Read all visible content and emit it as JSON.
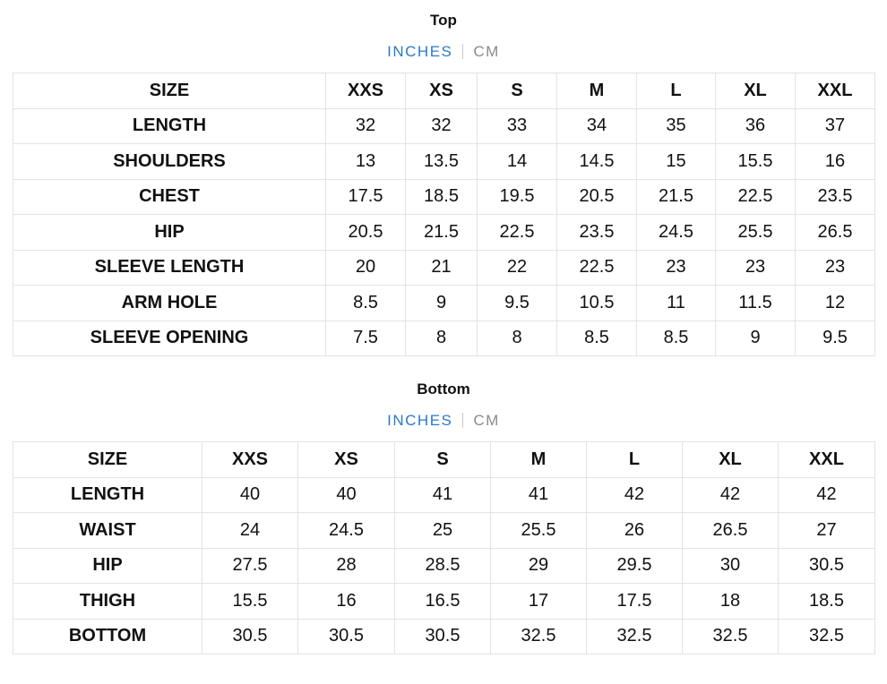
{
  "top": {
    "title": "Top",
    "units": {
      "active": "INCHES",
      "inactive": "CM"
    },
    "headers": [
      "SIZE",
      "XXS",
      "XS",
      "S",
      "M",
      "L",
      "XL",
      "XXL"
    ],
    "rows": [
      {
        "label": "LENGTH",
        "values": [
          "32",
          "32",
          "33",
          "34",
          "35",
          "36",
          "37"
        ]
      },
      {
        "label": "SHOULDERS",
        "values": [
          "13",
          "13.5",
          "14",
          "14.5",
          "15",
          "15.5",
          "16"
        ]
      },
      {
        "label": "CHEST",
        "values": [
          "17.5",
          "18.5",
          "19.5",
          "20.5",
          "21.5",
          "22.5",
          "23.5"
        ]
      },
      {
        "label": "HIP",
        "values": [
          "20.5",
          "21.5",
          "22.5",
          "23.5",
          "24.5",
          "25.5",
          "26.5"
        ]
      },
      {
        "label": "SLEEVE LENGTH",
        "values": [
          "20",
          "21",
          "22",
          "22.5",
          "23",
          "23",
          "23"
        ]
      },
      {
        "label": "ARM HOLE",
        "values": [
          "8.5",
          "9",
          "9.5",
          "10.5",
          "11",
          "11.5",
          "12"
        ]
      },
      {
        "label": "SLEEVE OPENING",
        "values": [
          "7.5",
          "8",
          "8",
          "8.5",
          "8.5",
          "9",
          "9.5"
        ]
      }
    ]
  },
  "bottom": {
    "title": "Bottom",
    "units": {
      "active": "INCHES",
      "inactive": "CM"
    },
    "headers": [
      "SIZE",
      "XXS",
      "XS",
      "S",
      "M",
      "L",
      "XL",
      "XXL"
    ],
    "rows": [
      {
        "label": "LENGTH",
        "values": [
          "40",
          "40",
          "41",
          "41",
          "42",
          "42",
          "42"
        ]
      },
      {
        "label": "WAIST",
        "values": [
          "24",
          "24.5",
          "25",
          "25.5",
          "26",
          "26.5",
          "27"
        ]
      },
      {
        "label": "HIP",
        "values": [
          "27.5",
          "28",
          "28.5",
          "29",
          "29.5",
          "30",
          "30.5"
        ]
      },
      {
        "label": "THIGH",
        "values": [
          "15.5",
          "16",
          "16.5",
          "17",
          "17.5",
          "18",
          "18.5"
        ]
      },
      {
        "label": "BOTTOM",
        "values": [
          "30.5",
          "30.5",
          "30.5",
          "32.5",
          "32.5",
          "32.5",
          "32.5"
        ]
      }
    ]
  },
  "colors": {
    "active_unit": "#2a7ac6",
    "inactive_unit": "#8a8a8a",
    "border": "#e3e3e3"
  }
}
